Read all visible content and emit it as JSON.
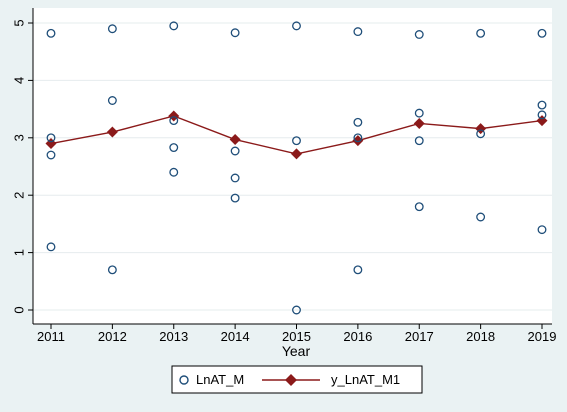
{
  "chart_data": {
    "type": "scatter",
    "title": "",
    "xlabel": "Year",
    "ylabel": "",
    "xlim": [
      2011,
      2019
    ],
    "ylim": [
      0,
      5
    ],
    "x_ticks": [
      "2011",
      "2012",
      "2013",
      "2014",
      "2015",
      "2016",
      "2017",
      "2018",
      "2019"
    ],
    "y_ticks": [
      "0",
      "1",
      "2",
      "3",
      "4",
      "5"
    ],
    "grid": true,
    "legend_position": "bottom",
    "colors": {
      "background": "#eaf2f3",
      "plot_area": "#ffffff",
      "grid": "#e6ecee",
      "scatter": "#1f4e79",
      "line": "#8b1a1a"
    },
    "series": [
      {
        "name": "LnAT_M",
        "kind": "scatter",
        "marker": "hollow-circle",
        "points": [
          [
            2011,
            4.82
          ],
          [
            2011,
            3.0
          ],
          [
            2011,
            2.7
          ],
          [
            2011,
            1.1
          ],
          [
            2012,
            4.9
          ],
          [
            2012,
            3.65
          ],
          [
            2012,
            0.7
          ],
          [
            2013,
            4.95
          ],
          [
            2013,
            3.3
          ],
          [
            2013,
            2.83
          ],
          [
            2013,
            2.4
          ],
          [
            2014,
            4.83
          ],
          [
            2014,
            2.77
          ],
          [
            2014,
            2.3
          ],
          [
            2014,
            1.95
          ],
          [
            2015,
            4.95
          ],
          [
            2015,
            2.95
          ],
          [
            2015,
            0.0
          ],
          [
            2016,
            4.85
          ],
          [
            2016,
            3.27
          ],
          [
            2016,
            3.0
          ],
          [
            2016,
            0.7
          ],
          [
            2017,
            4.8
          ],
          [
            2017,
            3.43
          ],
          [
            2017,
            2.95
          ],
          [
            2017,
            1.8
          ],
          [
            2018,
            4.82
          ],
          [
            2018,
            3.07
          ],
          [
            2018,
            1.62
          ],
          [
            2019,
            4.82
          ],
          [
            2019,
            3.57
          ],
          [
            2019,
            3.4
          ],
          [
            2019,
            1.4
          ]
        ]
      },
      {
        "name": "y_LnAT_M1",
        "kind": "line",
        "marker": "filled-diamond",
        "x": [
          2011,
          2012,
          2013,
          2014,
          2015,
          2016,
          2017,
          2018,
          2019
        ],
        "values": [
          2.9,
          3.1,
          3.38,
          2.97,
          2.72,
          2.95,
          3.25,
          3.16,
          3.3
        ]
      }
    ]
  }
}
